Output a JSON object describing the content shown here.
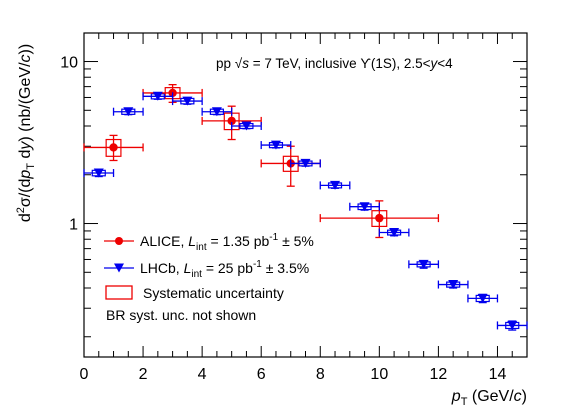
{
  "chart_data": {
    "type": "scatter",
    "annotation": "pp √s = 7 TeV, inclusive ϒ(1S), 2.5<y<4",
    "xlabel": "p_T (GeV/c)",
    "ylabel": "d²σ/(dp_T dy) (nb/(GeV/c))",
    "xlim": [
      0,
      15
    ],
    "ylim": [
      0.15,
      15
    ],
    "yscale": "log",
    "x_ticks": [
      0,
      2,
      4,
      6,
      8,
      10,
      12,
      14
    ],
    "y_ticks": [
      1,
      10
    ],
    "legend": {
      "placement": "bottom-left",
      "entries": [
        "ALICE, L_int = 1.35 pb⁻¹ ± 5%",
        "LHCb, L_int = 25 pb⁻¹ ± 3.5%",
        "Systematic uncertainty",
        "BR syst. unc. not shown"
      ]
    },
    "series": [
      {
        "name": "ALICE",
        "color": "#ee0000",
        "marker": "circle",
        "points": [
          {
            "x": 1,
            "y": 2.95,
            "xlo": 0,
            "xhi": 2,
            "ylo": 2.45,
            "yhi": 3.5
          },
          {
            "x": 3,
            "y": 6.4,
            "xlo": 2,
            "xhi": 4,
            "ylo": 5.6,
            "yhi": 7.2
          },
          {
            "x": 5,
            "y": 4.3,
            "xlo": 4,
            "xhi": 6,
            "ylo": 3.3,
            "yhi": 5.3
          },
          {
            "x": 7,
            "y": 2.35,
            "xlo": 6,
            "xhi": 8,
            "ylo": 1.7,
            "yhi": 3.0
          },
          {
            "x": 10,
            "y": 1.08,
            "xlo": 8,
            "xhi": 12,
            "ylo": 0.82,
            "yhi": 1.38
          }
        ]
      },
      {
        "name": "LHCb",
        "color": "#0000ee",
        "marker": "triangle-down",
        "points": [
          {
            "x": 0.5,
            "y": 2.05,
            "xlo": 0,
            "xhi": 1,
            "ylo": 1.95,
            "yhi": 2.15
          },
          {
            "x": 1.5,
            "y": 4.9,
            "xlo": 1,
            "xhi": 2,
            "ylo": 4.7,
            "yhi": 5.1
          },
          {
            "x": 2.5,
            "y": 6.1,
            "xlo": 2,
            "xhi": 3,
            "ylo": 5.85,
            "yhi": 6.35
          },
          {
            "x": 3.5,
            "y": 5.7,
            "xlo": 3,
            "xhi": 4,
            "ylo": 5.45,
            "yhi": 5.95
          },
          {
            "x": 4.5,
            "y": 4.9,
            "xlo": 4,
            "xhi": 5,
            "ylo": 4.7,
            "yhi": 5.1
          },
          {
            "x": 5.5,
            "y": 4.0,
            "xlo": 5,
            "xhi": 6,
            "ylo": 3.85,
            "yhi": 4.15
          },
          {
            "x": 6.5,
            "y": 3.05,
            "xlo": 6,
            "xhi": 7,
            "ylo": 2.93,
            "yhi": 3.17
          },
          {
            "x": 7.5,
            "y": 2.35,
            "xlo": 7,
            "xhi": 8,
            "ylo": 2.26,
            "yhi": 2.44
          },
          {
            "x": 8.5,
            "y": 1.72,
            "xlo": 8,
            "xhi": 9,
            "ylo": 1.65,
            "yhi": 1.79
          },
          {
            "x": 9.5,
            "y": 1.27,
            "xlo": 9,
            "xhi": 10,
            "ylo": 1.21,
            "yhi": 1.33
          },
          {
            "x": 10.5,
            "y": 0.88,
            "xlo": 10,
            "xhi": 11,
            "ylo": 0.84,
            "yhi": 0.92
          },
          {
            "x": 11.5,
            "y": 0.56,
            "xlo": 11,
            "xhi": 12,
            "ylo": 0.53,
            "yhi": 0.59
          },
          {
            "x": 12.5,
            "y": 0.42,
            "xlo": 12,
            "xhi": 13,
            "ylo": 0.4,
            "yhi": 0.44
          },
          {
            "x": 13.5,
            "y": 0.345,
            "xlo": 13,
            "xhi": 14,
            "ylo": 0.325,
            "yhi": 0.365
          },
          {
            "x": 14.5,
            "y": 0.235,
            "xlo": 14,
            "xhi": 15,
            "ylo": 0.22,
            "yhi": 0.25
          }
        ]
      }
    ],
    "systematic_boxes": [
      {
        "series": "ALICE",
        "x": 1,
        "ylo": 2.6,
        "yhi": 3.3
      },
      {
        "series": "ALICE",
        "x": 3,
        "ylo": 5.9,
        "yhi": 6.9
      },
      {
        "series": "ALICE",
        "x": 5,
        "ylo": 3.8,
        "yhi": 4.8
      },
      {
        "series": "ALICE",
        "x": 7,
        "ylo": 2.1,
        "yhi": 2.6
      },
      {
        "series": "ALICE",
        "x": 10,
        "ylo": 0.96,
        "yhi": 1.2
      },
      {
        "series": "LHCb",
        "x": 0.5,
        "ylo": 1.97,
        "yhi": 2.13
      },
      {
        "series": "LHCb",
        "x": 1.5,
        "ylo": 4.72,
        "yhi": 5.08
      },
      {
        "series": "LHCb",
        "x": 2.5,
        "ylo": 5.88,
        "yhi": 6.32
      },
      {
        "series": "LHCb",
        "x": 3.5,
        "ylo": 5.48,
        "yhi": 5.92
      },
      {
        "series": "LHCb",
        "x": 4.5,
        "ylo": 4.72,
        "yhi": 5.08
      },
      {
        "series": "LHCb",
        "x": 5.5,
        "ylo": 3.86,
        "yhi": 4.14
      },
      {
        "series": "LHCb",
        "x": 6.5,
        "ylo": 2.94,
        "yhi": 3.16
      },
      {
        "series": "LHCb",
        "x": 7.5,
        "ylo": 2.27,
        "yhi": 2.43
      },
      {
        "series": "LHCb",
        "x": 8.5,
        "ylo": 1.66,
        "yhi": 1.78
      },
      {
        "series": "LHCb",
        "x": 9.5,
        "ylo": 1.22,
        "yhi": 1.32
      },
      {
        "series": "LHCb",
        "x": 10.5,
        "ylo": 0.85,
        "yhi": 0.91
      },
      {
        "series": "LHCb",
        "x": 11.5,
        "ylo": 0.54,
        "yhi": 0.58
      },
      {
        "series": "LHCb",
        "x": 12.5,
        "ylo": 0.405,
        "yhi": 0.435
      },
      {
        "series": "LHCb",
        "x": 13.5,
        "ylo": 0.33,
        "yhi": 0.36
      },
      {
        "series": "LHCb",
        "x": 14.5,
        "ylo": 0.225,
        "yhi": 0.245
      }
    ]
  }
}
